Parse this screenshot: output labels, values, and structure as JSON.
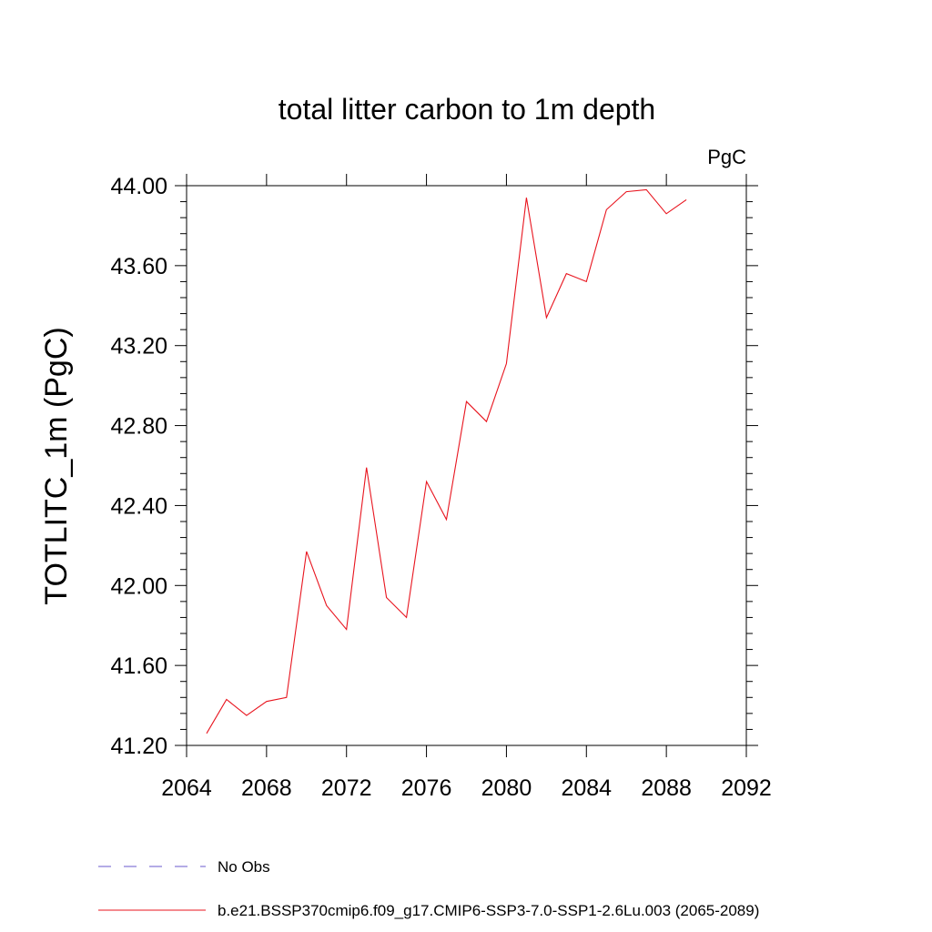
{
  "chart_data": {
    "type": "line",
    "title": "total litter carbon to 1m depth",
    "units_label": "PgC",
    "ylabel": "TOTLITC_1m  (PgC)",
    "xlabel": "",
    "xlim": [
      2064,
      2092
    ],
    "ylim": [
      41.2,
      44.0
    ],
    "x_ticks": [
      2064,
      2068,
      2072,
      2076,
      2080,
      2084,
      2088,
      2092
    ],
    "x_tick_labels": [
      "2064",
      "2068",
      "2072",
      "2076",
      "2080",
      "2084",
      "2088",
      "2092"
    ],
    "y_ticks": [
      41.2,
      41.6,
      42.0,
      42.4,
      42.8,
      43.2,
      43.6,
      44.0
    ],
    "y_tick_labels": [
      "41.20",
      "41.60",
      "42.00",
      "42.40",
      "42.80",
      "43.20",
      "43.60",
      "44.00"
    ],
    "grid": false,
    "legend_position": "bottom",
    "series": [
      {
        "name": "b.e21.BSSP370cmip6.f09_g17.CMIP6-SSP3-7.0-SSP1-2.6Lu.003 (2065-2089)",
        "color": "#e8141e",
        "style": "solid",
        "x": [
          2065,
          2066,
          2067,
          2068,
          2069,
          2070,
          2071,
          2072,
          2073,
          2074,
          2075,
          2076,
          2077,
          2078,
          2079,
          2080,
          2081,
          2082,
          2083,
          2084,
          2085,
          2086,
          2087,
          2088,
          2089
        ],
        "values": [
          41.26,
          41.43,
          41.35,
          41.42,
          41.44,
          42.17,
          41.9,
          41.78,
          42.59,
          41.94,
          41.84,
          42.52,
          42.33,
          42.92,
          42.82,
          43.11,
          43.94,
          43.34,
          43.56,
          43.52,
          43.88,
          43.97,
          43.98,
          43.86,
          43.93
        ]
      }
    ],
    "legend": [
      {
        "label": "No Obs",
        "color": "#6a5acd",
        "style": "dashed"
      },
      {
        "label": "b.e21.BSSP370cmip6.f09_g17.CMIP6-SSP3-7.0-SSP1-2.6Lu.003 (2065-2089)",
        "color": "#e8141e",
        "style": "solid"
      }
    ]
  }
}
